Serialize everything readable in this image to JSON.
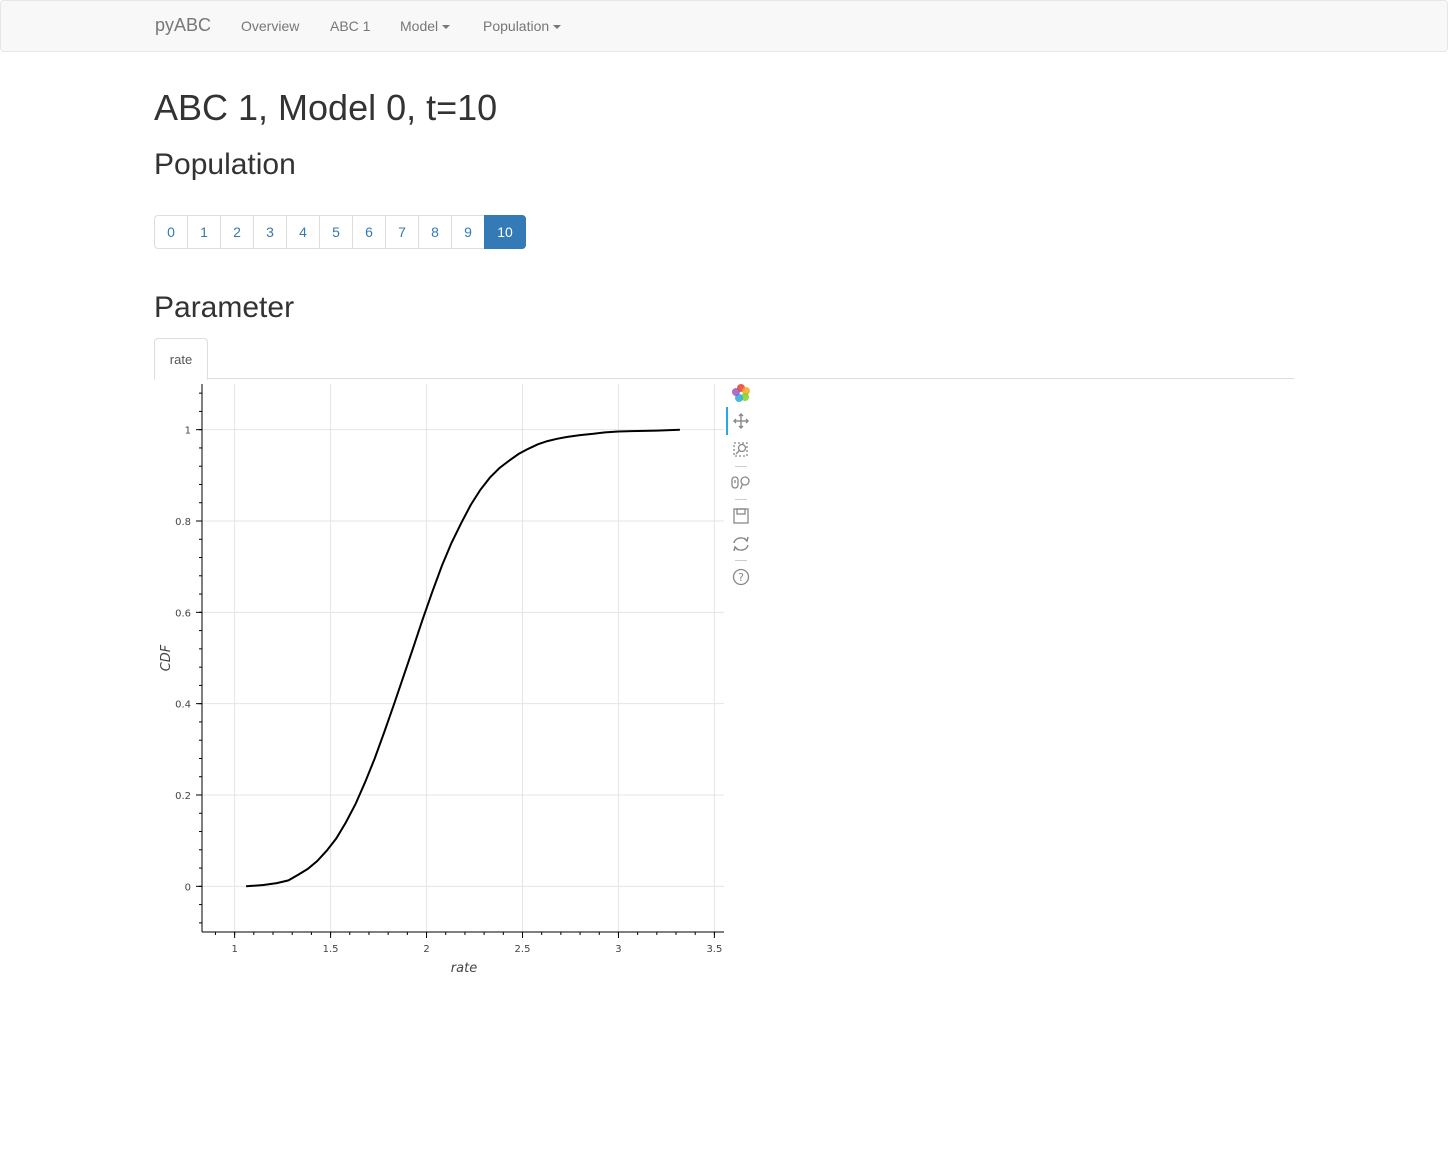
{
  "navbar": {
    "brand": "pyABC",
    "links": [
      {
        "label": "Overview"
      },
      {
        "label": "ABC 1"
      },
      {
        "label": "Model"
      },
      {
        "label": "Population"
      }
    ]
  },
  "page_title": "ABC 1, Model 0, t=10",
  "population_heading": "Population",
  "pagination": [
    "0",
    "1",
    "2",
    "3",
    "4",
    "5",
    "6",
    "7",
    "8",
    "9",
    "10"
  ],
  "active_page": "10",
  "parameter_heading": "Parameter",
  "tabs": [
    {
      "label": "rate"
    }
  ],
  "toolbar": [
    "bokeh-logo-icon",
    "pan-icon",
    "box-zoom-icon",
    "wheel-zoom-icon",
    "save-icon",
    "reset-icon",
    "help-icon"
  ],
  "colors": {
    "accent": "#337ab7",
    "line": "#000000"
  },
  "chart_data": {
    "type": "line",
    "xlabel": "rate",
    "ylabel": "CDF",
    "xlim": [
      0.83,
      3.55
    ],
    "ylim": [
      -0.1,
      1.1
    ],
    "xticks": [
      "1",
      "1.5",
      "2",
      "2.5",
      "3",
      "3.5"
    ],
    "yticks": [
      "0",
      "0.2",
      "0.4",
      "0.6",
      "0.8",
      "1"
    ],
    "grid": true,
    "series": [
      {
        "x": [
          1.06,
          1.15,
          1.22,
          1.28,
          1.33,
          1.38,
          1.43,
          1.48,
          1.53,
          1.58,
          1.63,
          1.68,
          1.73,
          1.78,
          1.83,
          1.88,
          1.93,
          1.98,
          2.03,
          2.08,
          2.13,
          2.18,
          2.23,
          2.28,
          2.33,
          2.38,
          2.43,
          2.48,
          2.53,
          2.58,
          2.63,
          2.68,
          2.73,
          2.8,
          2.87,
          2.93,
          3.0,
          3.1,
          3.2,
          3.32
        ],
        "y": [
          0.0,
          0.003,
          0.007,
          0.013,
          0.025,
          0.038,
          0.055,
          0.078,
          0.105,
          0.14,
          0.18,
          0.228,
          0.28,
          0.338,
          0.398,
          0.46,
          0.522,
          0.585,
          0.645,
          0.702,
          0.752,
          0.795,
          0.835,
          0.868,
          0.895,
          0.916,
          0.932,
          0.947,
          0.958,
          0.968,
          0.975,
          0.98,
          0.984,
          0.988,
          0.991,
          0.994,
          0.996,
          0.997,
          0.998,
          1.0
        ]
      }
    ]
  }
}
